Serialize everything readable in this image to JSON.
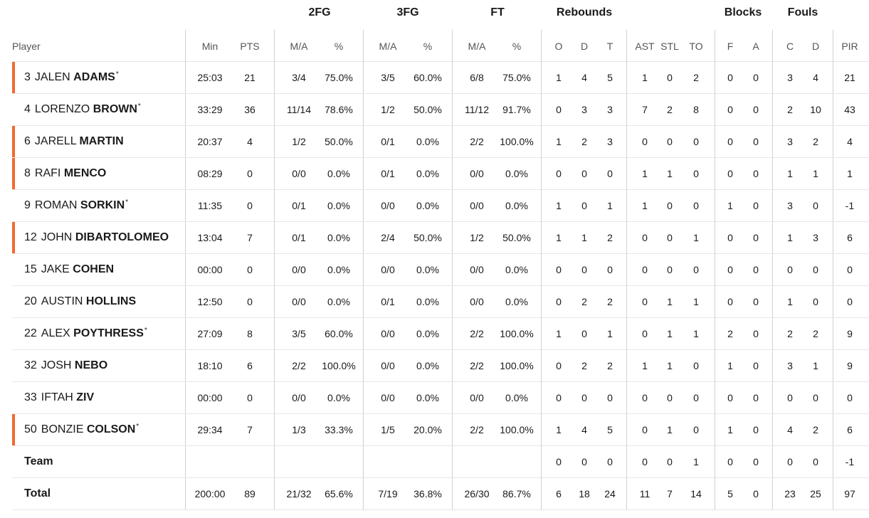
{
  "groups": [
    "2FG",
    "3FG",
    "FT",
    "Rebounds",
    "Blocks",
    "Fouls"
  ],
  "headers": {
    "player": "Player",
    "min": "Min",
    "pts": "PTS",
    "fg2_ma": "M/A",
    "fg2_pct": "%",
    "fg3_ma": "M/A",
    "fg3_pct": "%",
    "ft_ma": "M/A",
    "ft_pct": "%",
    "o": "O",
    "d": "D",
    "t": "T",
    "ast": "AST",
    "stl": "STL",
    "to": "TO",
    "f": "F",
    "a": "A",
    "c": "C",
    "fd": "D",
    "pir": "PIR"
  },
  "players": [
    {
      "num": "3",
      "first": "JALEN",
      "last": "ADAMS",
      "starter": true,
      "marked": true,
      "min": "25:03",
      "pts": "21",
      "fg2_ma": "3/4",
      "fg2_pct": "75.0%",
      "fg3_ma": "3/5",
      "fg3_pct": "60.0%",
      "ft_ma": "6/8",
      "ft_pct": "75.0%",
      "o": "1",
      "d": "4",
      "t": "5",
      "ast": "1",
      "stl": "0",
      "to": "2",
      "f": "0",
      "a": "0",
      "c": "3",
      "fd": "4",
      "pir": "21"
    },
    {
      "num": "4",
      "first": "LORENZO",
      "last": "BROWN",
      "starter": true,
      "marked": false,
      "min": "33:29",
      "pts": "36",
      "fg2_ma": "11/14",
      "fg2_pct": "78.6%",
      "fg3_ma": "1/2",
      "fg3_pct": "50.0%",
      "ft_ma": "11/12",
      "ft_pct": "91.7%",
      "o": "0",
      "d": "3",
      "t": "3",
      "ast": "7",
      "stl": "2",
      "to": "8",
      "f": "0",
      "a": "0",
      "c": "2",
      "fd": "10",
      "pir": "43"
    },
    {
      "num": "6",
      "first": "JARELL",
      "last": "MARTIN",
      "starter": false,
      "marked": true,
      "min": "20:37",
      "pts": "4",
      "fg2_ma": "1/2",
      "fg2_pct": "50.0%",
      "fg3_ma": "0/1",
      "fg3_pct": "0.0%",
      "ft_ma": "2/2",
      "ft_pct": "100.0%",
      "o": "1",
      "d": "2",
      "t": "3",
      "ast": "0",
      "stl": "0",
      "to": "0",
      "f": "0",
      "a": "0",
      "c": "3",
      "fd": "2",
      "pir": "4"
    },
    {
      "num": "8",
      "first": "RAFI",
      "last": "MENCO",
      "starter": false,
      "marked": true,
      "min": "08:29",
      "pts": "0",
      "fg2_ma": "0/0",
      "fg2_pct": "0.0%",
      "fg3_ma": "0/1",
      "fg3_pct": "0.0%",
      "ft_ma": "0/0",
      "ft_pct": "0.0%",
      "o": "0",
      "d": "0",
      "t": "0",
      "ast": "1",
      "stl": "1",
      "to": "0",
      "f": "0",
      "a": "0",
      "c": "1",
      "fd": "1",
      "pir": "1"
    },
    {
      "num": "9",
      "first": "ROMAN",
      "last": "SORKIN",
      "starter": true,
      "marked": false,
      "min": "11:35",
      "pts": "0",
      "fg2_ma": "0/1",
      "fg2_pct": "0.0%",
      "fg3_ma": "0/0",
      "fg3_pct": "0.0%",
      "ft_ma": "0/0",
      "ft_pct": "0.0%",
      "o": "1",
      "d": "0",
      "t": "1",
      "ast": "1",
      "stl": "0",
      "to": "0",
      "f": "1",
      "a": "0",
      "c": "3",
      "fd": "0",
      "pir": "-1"
    },
    {
      "num": "12",
      "first": "JOHN",
      "last": "DIBARTOLOMEO",
      "starter": false,
      "marked": true,
      "min": "13:04",
      "pts": "7",
      "fg2_ma": "0/1",
      "fg2_pct": "0.0%",
      "fg3_ma": "2/4",
      "fg3_pct": "50.0%",
      "ft_ma": "1/2",
      "ft_pct": "50.0%",
      "o": "1",
      "d": "1",
      "t": "2",
      "ast": "0",
      "stl": "0",
      "to": "1",
      "f": "0",
      "a": "0",
      "c": "1",
      "fd": "3",
      "pir": "6"
    },
    {
      "num": "15",
      "first": "JAKE",
      "last": "COHEN",
      "starter": false,
      "marked": false,
      "min": "00:00",
      "pts": "0",
      "fg2_ma": "0/0",
      "fg2_pct": "0.0%",
      "fg3_ma": "0/0",
      "fg3_pct": "0.0%",
      "ft_ma": "0/0",
      "ft_pct": "0.0%",
      "o": "0",
      "d": "0",
      "t": "0",
      "ast": "0",
      "stl": "0",
      "to": "0",
      "f": "0",
      "a": "0",
      "c": "0",
      "fd": "0",
      "pir": "0"
    },
    {
      "num": "20",
      "first": "AUSTIN",
      "last": "HOLLINS",
      "starter": false,
      "marked": false,
      "min": "12:50",
      "pts": "0",
      "fg2_ma": "0/0",
      "fg2_pct": "0.0%",
      "fg3_ma": "0/1",
      "fg3_pct": "0.0%",
      "ft_ma": "0/0",
      "ft_pct": "0.0%",
      "o": "0",
      "d": "2",
      "t": "2",
      "ast": "0",
      "stl": "1",
      "to": "1",
      "f": "0",
      "a": "0",
      "c": "1",
      "fd": "0",
      "pir": "0"
    },
    {
      "num": "22",
      "first": "ALEX",
      "last": "POYTHRESS",
      "starter": true,
      "marked": false,
      "min": "27:09",
      "pts": "8",
      "fg2_ma": "3/5",
      "fg2_pct": "60.0%",
      "fg3_ma": "0/0",
      "fg3_pct": "0.0%",
      "ft_ma": "2/2",
      "ft_pct": "100.0%",
      "o": "1",
      "d": "0",
      "t": "1",
      "ast": "0",
      "stl": "1",
      "to": "1",
      "f": "2",
      "a": "0",
      "c": "2",
      "fd": "2",
      "pir": "9"
    },
    {
      "num": "32",
      "first": "JOSH",
      "last": "NEBO",
      "starter": false,
      "marked": false,
      "min": "18:10",
      "pts": "6",
      "fg2_ma": "2/2",
      "fg2_pct": "100.0%",
      "fg3_ma": "0/0",
      "fg3_pct": "0.0%",
      "ft_ma": "2/2",
      "ft_pct": "100.0%",
      "o": "0",
      "d": "2",
      "t": "2",
      "ast": "1",
      "stl": "1",
      "to": "0",
      "f": "1",
      "a": "0",
      "c": "3",
      "fd": "1",
      "pir": "9"
    },
    {
      "num": "33",
      "first": "IFTAH",
      "last": "ZIV",
      "starter": false,
      "marked": false,
      "min": "00:00",
      "pts": "0",
      "fg2_ma": "0/0",
      "fg2_pct": "0.0%",
      "fg3_ma": "0/0",
      "fg3_pct": "0.0%",
      "ft_ma": "0/0",
      "ft_pct": "0.0%",
      "o": "0",
      "d": "0",
      "t": "0",
      "ast": "0",
      "stl": "0",
      "to": "0",
      "f": "0",
      "a": "0",
      "c": "0",
      "fd": "0",
      "pir": "0"
    },
    {
      "num": "50",
      "first": "BONZIE",
      "last": "COLSON",
      "starter": true,
      "marked": true,
      "min": "29:34",
      "pts": "7",
      "fg2_ma": "1/3",
      "fg2_pct": "33.3%",
      "fg3_ma": "1/5",
      "fg3_pct": "20.0%",
      "ft_ma": "2/2",
      "ft_pct": "100.0%",
      "o": "1",
      "d": "4",
      "t": "5",
      "ast": "0",
      "stl": "1",
      "to": "0",
      "f": "1",
      "a": "0",
      "c": "4",
      "fd": "2",
      "pir": "6"
    }
  ],
  "team": {
    "label": "Team",
    "o": "0",
    "d": "0",
    "t": "0",
    "ast": "0",
    "stl": "0",
    "to": "1",
    "f": "0",
    "a": "0",
    "c": "0",
    "fd": "0",
    "pir": "-1"
  },
  "total": {
    "label": "Total",
    "min": "200:00",
    "pts": "89",
    "fg2_ma": "21/32",
    "fg2_pct": "65.6%",
    "fg3_ma": "7/19",
    "fg3_pct": "36.8%",
    "ft_ma": "26/30",
    "ft_pct": "86.7%",
    "o": "6",
    "d": "18",
    "t": "24",
    "ast": "11",
    "stl": "7",
    "to": "14",
    "f": "5",
    "a": "0",
    "c": "23",
    "fd": "25",
    "pir": "97"
  },
  "colors": {
    "starter_marker": "#f26a2e",
    "divider": "#d0d0d0",
    "row_border": "#e6e6e6",
    "header_text": "#555555"
  },
  "starter_mark": "*"
}
